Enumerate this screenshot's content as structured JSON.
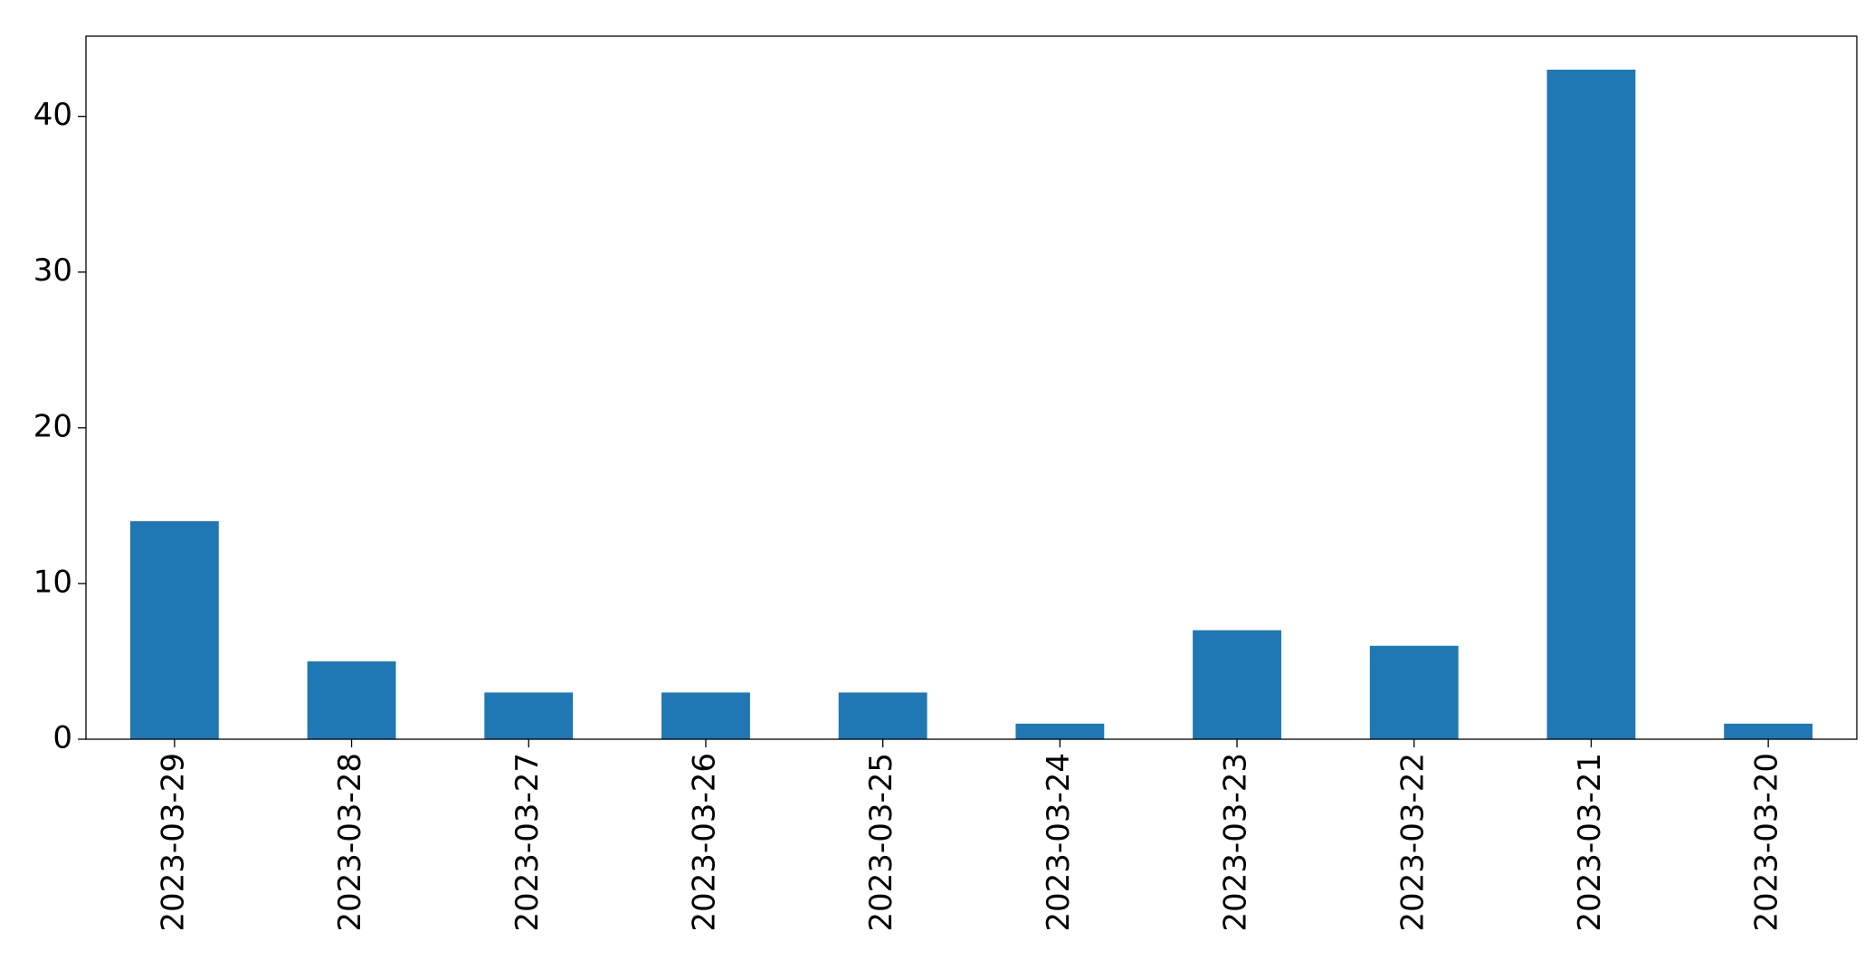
{
  "chart_data": {
    "type": "bar",
    "categories": [
      "2023-03-29",
      "2023-03-28",
      "2023-03-27",
      "2023-03-26",
      "2023-03-25",
      "2023-03-24",
      "2023-03-23",
      "2023-03-22",
      "2023-03-21",
      "2023-03-20"
    ],
    "values": [
      14,
      5,
      3,
      3,
      3,
      1,
      7,
      6,
      43,
      1
    ],
    "color": "#1f77b4",
    "ylim": [
      0,
      45.15
    ],
    "yticks": [
      0,
      10,
      20,
      30,
      40
    ],
    "grid": false
  }
}
